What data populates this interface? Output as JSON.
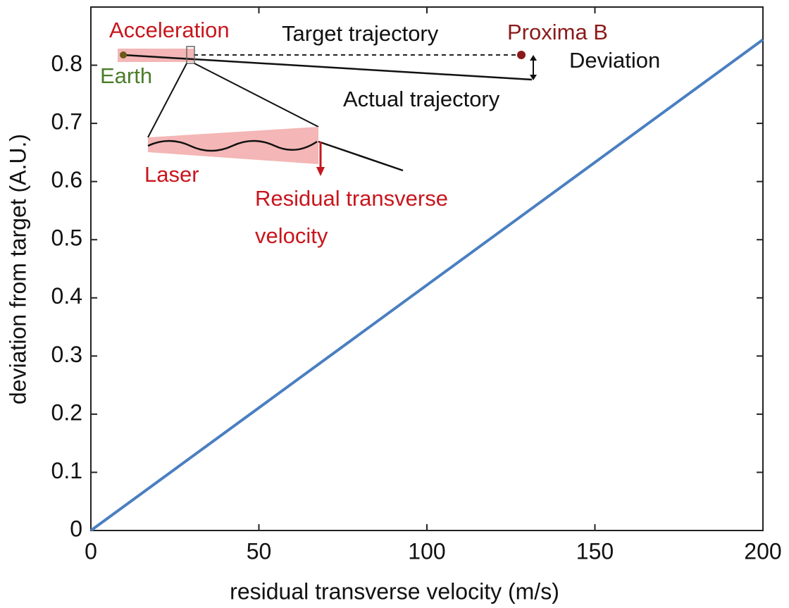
{
  "chart_data": {
    "type": "line",
    "x_label": "residual transverse velocity (m/s)",
    "y_label": "deviation from target (A.U.)",
    "series": [
      {
        "color": "#4a7fc1",
        "x": [
          0,
          200
        ],
        "values": [
          0,
          0.844
        ]
      }
    ],
    "xlim": [
      0,
      200
    ],
    "xticks": [
      0,
      50,
      100,
      150,
      200
    ],
    "ylim": [
      0,
      0.9
    ],
    "yticks": [
      0,
      0.1,
      0.2,
      0.3,
      0.4,
      0.5,
      0.6,
      0.7,
      0.8
    ],
    "grid": false,
    "annotations": [
      {
        "text": "Acceleration",
        "color": "#c8161d"
      },
      {
        "text": "Target trajectory",
        "color": "#111111"
      },
      {
        "text": "Proxima B",
        "color": "#8b1a1a"
      },
      {
        "text": "Deviation",
        "color": "#111111"
      },
      {
        "text": "Earth",
        "color": "#4b7d2a"
      },
      {
        "text": "Actual trajectory",
        "color": "#111111"
      },
      {
        "text": "Laser",
        "color": "#c8161d"
      },
      {
        "text": "Residual transverse",
        "color": "#c8161d"
      },
      {
        "text": "velocity",
        "color": "#c8161d"
      }
    ]
  }
}
